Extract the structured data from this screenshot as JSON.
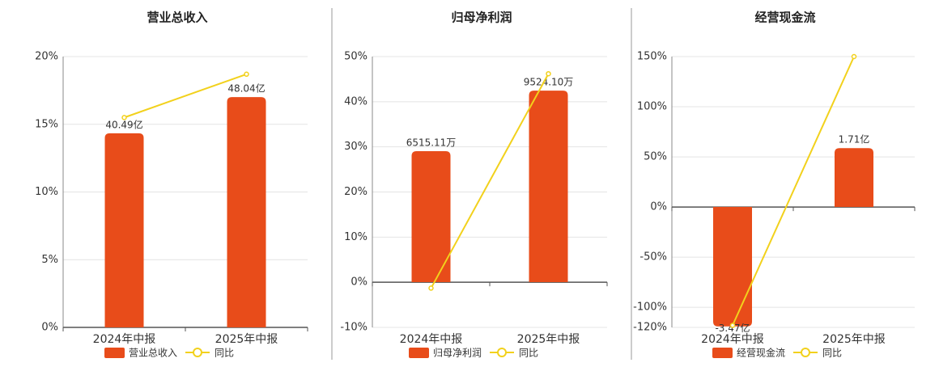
{
  "chart_data": [
    {
      "type": "bar",
      "title": "营业总收入",
      "categories": [
        "2024年中报",
        "2025年中报"
      ],
      "series": [
        {
          "name": "营业总收入",
          "color": "#e84c1a",
          "axis": "y2",
          "values": [
            40.49,
            48.04
          ],
          "value_labels": [
            "40.49亿",
            "48.04亿"
          ]
        },
        {
          "name": "同比",
          "color": "#f2d11c",
          "type": "line",
          "values": [
            15.5,
            18.7
          ]
        }
      ],
      "ylim": [
        0,
        20
      ],
      "yticks": [
        {
          "value": 0,
          "label": "0%"
        },
        {
          "value": 5,
          "label": "5%"
        },
        {
          "value": 10,
          "label": "10%"
        },
        {
          "value": 15,
          "label": "15%"
        },
        {
          "value": 20,
          "label": "20%"
        }
      ],
      "y2lim": [
        0,
        56.5
      ],
      "grid": true
    },
    {
      "type": "bar",
      "title": "归母净利润",
      "categories": [
        "2024年中报",
        "2025年中报"
      ],
      "series": [
        {
          "name": "归母净利润",
          "color": "#e84c1a",
          "axis": "y2",
          "values": [
            6515.11,
            9524.1
          ],
          "value_labels": [
            "6515.11万",
            "9524.10万"
          ]
        },
        {
          "name": "同比",
          "color": "#f2d11c",
          "type": "line",
          "values": [
            -1.3,
            46.2
          ]
        }
      ],
      "ylim": [
        -10,
        50
      ],
      "yticks": [
        {
          "value": -10,
          "label": "-10%"
        },
        {
          "value": 0,
          "label": "0%"
        },
        {
          "value": 10,
          "label": "10%"
        },
        {
          "value": 20,
          "label": "20%"
        },
        {
          "value": 30,
          "label": "30%"
        },
        {
          "value": 40,
          "label": "40%"
        },
        {
          "value": 50,
          "label": "50%"
        }
      ],
      "y2lim": [
        -2250,
        11220
      ],
      "grid": true
    },
    {
      "type": "bar",
      "title": "经营现金流",
      "categories": [
        "2024年中报",
        "2025年中报"
      ],
      "series": [
        {
          "name": "经营现金流",
          "color": "#e84c1a",
          "axis": "y2",
          "values": [
            -3.47,
            1.71
          ],
          "value_labels": [
            "-3.47亿",
            "1.71亿"
          ]
        },
        {
          "name": "同比",
          "color": "#f2d11c",
          "type": "line",
          "values": [
            -118,
            150
          ]
        }
      ],
      "ylim": [
        -120,
        150
      ],
      "yticks": [
        {
          "value": -120,
          "label": "-120%"
        },
        {
          "value": -100,
          "label": "-100%"
        },
        {
          "value": -50,
          "label": "-50%"
        },
        {
          "value": 0,
          "label": "0%"
        },
        {
          "value": 50,
          "label": "50%"
        },
        {
          "value": 100,
          "label": "100%"
        },
        {
          "value": 150,
          "label": "150%"
        }
      ],
      "y2lim": [
        -3.5,
        4.37
      ],
      "grid": true
    }
  ]
}
